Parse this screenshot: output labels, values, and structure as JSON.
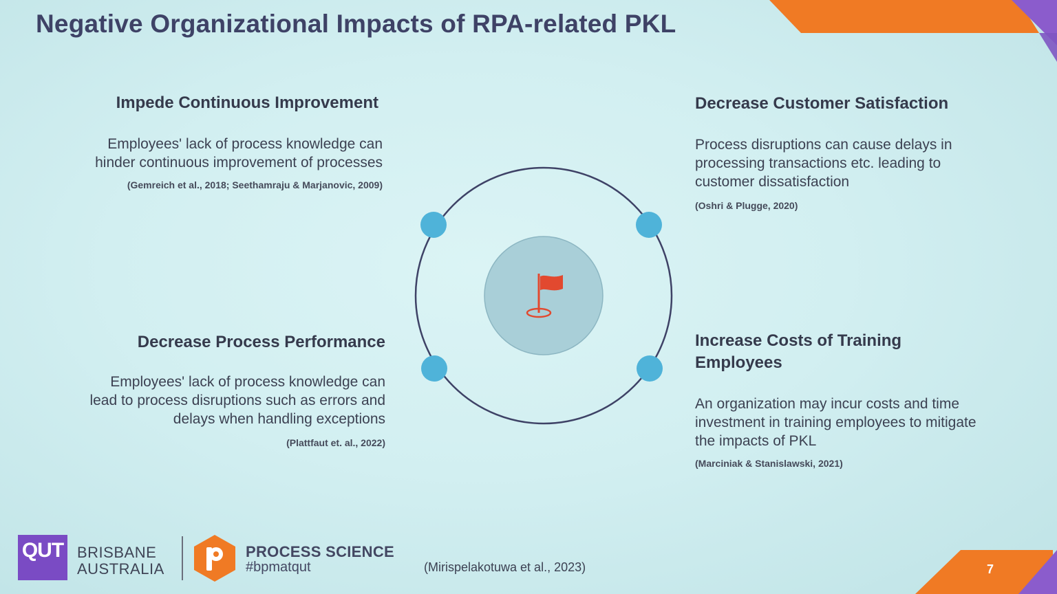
{
  "slide": {
    "title": "Negative Organizational Impacts of RPA-related PKL",
    "page_number": "7"
  },
  "impacts": [
    {
      "heading": "Impede Continuous Improvement",
      "body_lines": [
        "Employees' lack of process knowledge can",
        "hinder continuous improvement of processes"
      ],
      "citation": "(Gemreich et al., 2018; Seethamraju & Marjanovic, 2009)"
    },
    {
      "heading": "Decrease Customer Satisfaction",
      "body_lines": [
        "Process disruptions can cause delays in",
        "processing transactions etc. leading to",
        "customer dissatisfaction"
      ],
      "citation": "(Oshri & Plugge, 2020)"
    },
    {
      "heading": "Decrease Process Performance",
      "body_lines": [
        "Employees' lack of process knowledge can",
        "lead to process disruptions such as errors and",
        "delays when handling exceptions"
      ],
      "citation": "(Plattfaut et. al., 2022)"
    },
    {
      "heading_lines": [
        "Increase Costs of Training",
        "Employees"
      ],
      "body_lines": [
        "An organization may incur costs and time",
        "investment in training employees to mitigate",
        "the impacts of PKL"
      ],
      "citation": "(Marciniak & Stanislawski, 2021)"
    }
  ],
  "diagram": {
    "center_icon": "flag-target-icon",
    "node_count": 4
  },
  "footer": {
    "qut_logo_text": "QUT",
    "location_lines": [
      "BRISBANE",
      "AUSTRALIA"
    ],
    "process_science_name": "PROCESS SCIENCE",
    "process_science_tag": "#bpmatqut",
    "source_citation": "(Mirispelakotuwa et al., 2023)"
  },
  "colors": {
    "title": "#3e4266",
    "accent_orange": "#f07a24",
    "accent_purple": "#7a4bc4",
    "node_blue": "#4fb3d9",
    "flag_red": "#e2492f"
  }
}
